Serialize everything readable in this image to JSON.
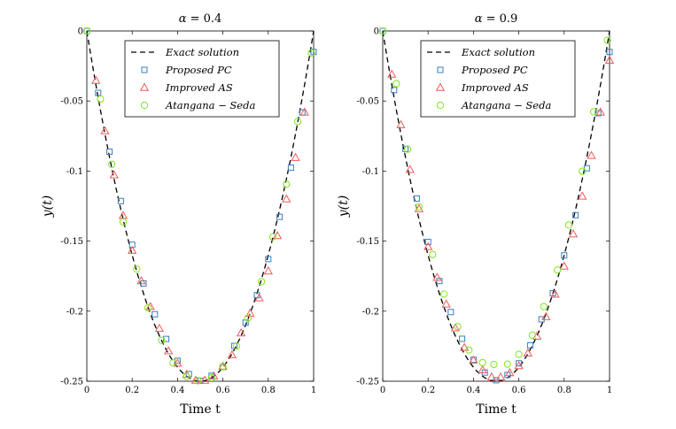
{
  "chart_data": [
    {
      "type": "scatter",
      "title_symbol": "α",
      "title_value": "= 0.4",
      "xlabel": "Time t",
      "ylabel": "y(t)",
      "xlim": [
        0,
        1
      ],
      "ylim": [
        -0.25,
        0
      ],
      "xticks": [
        0,
        0.2,
        0.4,
        0.6,
        0.8,
        1
      ],
      "xtick_labels": [
        "0",
        "0.2",
        "0.4",
        "0.6",
        "0.8",
        "1"
      ],
      "yticks": [
        0,
        -0.05,
        -0.1,
        -0.15,
        -0.2,
        -0.25
      ],
      "ytick_labels": [
        "0",
        "-0.05",
        "-0.1",
        "-0.15",
        "-0.2",
        "-0.25"
      ],
      "legend_position": "top-right",
      "exact": {
        "name": "Exact solution",
        "formula": "y = t^2 - t",
        "color": "#000000"
      },
      "series": [
        {
          "name": "Proposed PC",
          "marker": "square",
          "color": "#3a7ebf",
          "x": [
            0,
            0.05,
            0.1,
            0.15,
            0.2,
            0.25,
            0.3,
            0.35,
            0.4,
            0.45,
            0.5,
            0.55,
            0.6,
            0.65,
            0.7,
            0.75,
            0.8,
            0.85,
            0.9,
            0.95,
            1
          ],
          "y": [
            0,
            -0.0442,
            -0.0862,
            -0.1214,
            -0.1526,
            -0.1802,
            -0.2022,
            -0.2198,
            -0.2354,
            -0.2449,
            -0.2497,
            -0.2461,
            -0.2398,
            -0.2248,
            -0.2082,
            -0.1886,
            -0.1628,
            -0.1327,
            -0.0976,
            -0.0582,
            -0.015
          ]
        },
        {
          "name": "Improved AS",
          "marker": "triangle",
          "color": "#f25a5a",
          "x": [
            0.04,
            0.08,
            0.12,
            0.16,
            0.2,
            0.24,
            0.28,
            0.32,
            0.36,
            0.4,
            0.44,
            0.48,
            0.52,
            0.56,
            0.6,
            0.64,
            0.68,
            0.72,
            0.76,
            0.8,
            0.84,
            0.88,
            0.92,
            0.96
          ],
          "y": [
            -0.0354,
            -0.0714,
            -0.1028,
            -0.1318,
            -0.1567,
            -0.1784,
            -0.1968,
            -0.2124,
            -0.2284,
            -0.2372,
            -0.2452,
            -0.2494,
            -0.2494,
            -0.2464,
            -0.2394,
            -0.2312,
            -0.2156,
            -0.2016,
            -0.1906,
            -0.1714,
            -0.1462,
            -0.12,
            -0.0904,
            -0.058
          ]
        },
        {
          "name": "Atangana − Seda",
          "marker": "circle",
          "color": "#7fe817",
          "x": [
            0,
            0.06,
            0.11,
            0.16,
            0.22,
            0.27,
            0.33,
            0.38,
            0.44,
            0.49,
            0.55,
            0.6,
            0.66,
            0.71,
            0.77,
            0.82,
            0.88,
            0.93,
            0.99
          ],
          "y": [
            0,
            -0.0486,
            -0.0952,
            -0.1363,
            -0.1699,
            -0.1976,
            -0.2208,
            -0.2369,
            -0.2467,
            -0.2497,
            -0.2475,
            -0.2396,
            -0.2249,
            -0.2049,
            -0.1789,
            -0.147,
            -0.1094,
            -0.0646,
            -0.0157
          ]
        }
      ]
    },
    {
      "type": "scatter",
      "title_symbol": "α",
      "title_value": "= 0.9",
      "xlabel": "Time t",
      "ylabel": "y(t)",
      "xlim": [
        0,
        1
      ],
      "ylim": [
        -0.25,
        0
      ],
      "xticks": [
        0,
        0.2,
        0.4,
        0.6,
        0.8,
        1
      ],
      "xtick_labels": [
        "0",
        "0.2",
        "0.4",
        "0.6",
        "0.8",
        "1"
      ],
      "yticks": [
        0,
        -0.05,
        -0.1,
        -0.15,
        -0.2,
        -0.25
      ],
      "ytick_labels": [
        "0",
        "-0.05",
        "-0.1",
        "-0.15",
        "-0.2",
        "-0.25"
      ],
      "legend_position": "top-right",
      "exact": {
        "name": "Exact solution",
        "formula": "y = t^2 - t",
        "color": "#000000"
      },
      "series": [
        {
          "name": "Proposed PC",
          "marker": "square",
          "color": "#3a7ebf",
          "x": [
            0,
            0.05,
            0.1,
            0.15,
            0.2,
            0.25,
            0.3,
            0.35,
            0.4,
            0.45,
            0.5,
            0.55,
            0.6,
            0.65,
            0.7,
            0.75,
            0.8,
            0.85,
            0.9,
            0.95,
            1
          ],
          "y": [
            0,
            -0.0422,
            -0.0842,
            -0.1196,
            -0.1506,
            -0.1785,
            -0.2006,
            -0.2197,
            -0.2347,
            -0.2438,
            -0.2493,
            -0.2455,
            -0.2372,
            -0.2244,
            -0.2058,
            -0.1872,
            -0.1602,
            -0.1315,
            -0.098,
            -0.0587,
            -0.015
          ]
        },
        {
          "name": "Improved AS",
          "marker": "triangle",
          "color": "#f25a5a",
          "x": [
            0.04,
            0.08,
            0.12,
            0.16,
            0.2,
            0.24,
            0.28,
            0.32,
            0.36,
            0.4,
            0.44,
            0.48,
            0.52,
            0.56,
            0.6,
            0.64,
            0.68,
            0.72,
            0.76,
            0.8,
            0.84,
            0.88,
            0.92,
            0.96,
            1
          ],
          "y": [
            -0.031,
            -0.067,
            -0.099,
            -0.127,
            -0.154,
            -0.176,
            -0.195,
            -0.212,
            -0.226,
            -0.235,
            -0.242,
            -0.247,
            -0.247,
            -0.244,
            -0.239,
            -0.23,
            -0.218,
            -0.204,
            -0.188,
            -0.168,
            -0.145,
            -0.118,
            -0.089,
            -0.058,
            -0.021
          ]
        },
        {
          "name": "Atangana − Seda",
          "marker": "circle",
          "color": "#7fe817",
          "x": [
            0,
            0.06,
            0.11,
            0.16,
            0.22,
            0.27,
            0.33,
            0.38,
            0.44,
            0.49,
            0.55,
            0.6,
            0.66,
            0.71,
            0.77,
            0.82,
            0.88,
            0.93,
            0.99
          ],
          "y": [
            0,
            -0.0376,
            -0.0844,
            -0.1255,
            -0.1596,
            -0.1878,
            -0.211,
            -0.2277,
            -0.2367,
            -0.238,
            -0.2378,
            -0.2308,
            -0.2171,
            -0.1967,
            -0.1706,
            -0.1385,
            -0.1001,
            -0.0577,
            -0.0067
          ]
        }
      ]
    }
  ]
}
